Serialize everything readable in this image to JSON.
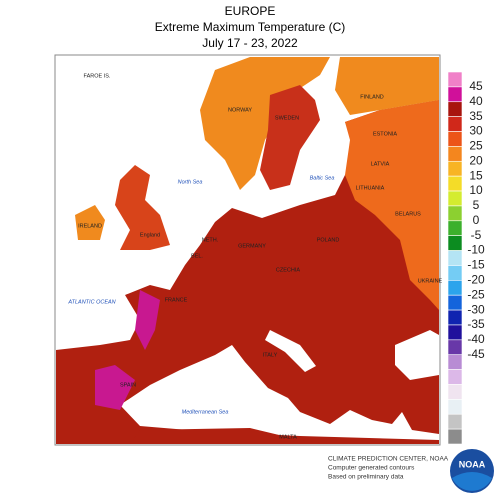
{
  "header": {
    "title": "EUROPE",
    "subtitle": "Extreme Maximum Temperature (C)",
    "dates": "July 17 - 23, 2022"
  },
  "map_labels": [
    "FAROE IS.",
    "NORWAY",
    "SWEDEN",
    "FINLAND",
    "ESTONIA",
    "LATVIA",
    "LITHUANIA",
    "BELARUS",
    "North Sea",
    "Baltic Sea",
    "IRELAND",
    "England",
    "NETH.",
    "BEL.",
    "GERMANY",
    "POLAND",
    "CZECHIA",
    "FRANCE",
    "ATLANTIC OCEAN",
    "SPAIN",
    "ITALY",
    "UKRAINE",
    "Mediterranean Sea",
    "MALTA"
  ],
  "legend": {
    "colors": [
      "#f080c8",
      "#d0109a",
      "#a8140e",
      "#d0281a",
      "#ec5418",
      "#f4861e",
      "#f8b424",
      "#f4dc28",
      "#d4ec30",
      "#8cd030",
      "#3cb02c",
      "#0c8c20",
      "#b4e4f4",
      "#74ccf4",
      "#2ca4ec",
      "#1464dc",
      "#1024b0",
      "#20109c",
      "#6838a8",
      "#b88cd4",
      "#dcb8e8",
      "#f0e4f0",
      "#e8f0f4",
      "#c4c4c4",
      "#8c8c8c"
    ],
    "ticks": [
      45,
      40,
      35,
      30,
      25,
      20,
      15,
      10,
      5,
      0,
      -5,
      -10,
      -15,
      -20,
      -25,
      -30,
      -35,
      -40,
      -45
    ]
  },
  "footer": [
    "CLIMATE PREDICTION CENTER, NOAA",
    "Computer generated contours",
    "Based on preliminary data"
  ],
  "logo": "NOAA"
}
